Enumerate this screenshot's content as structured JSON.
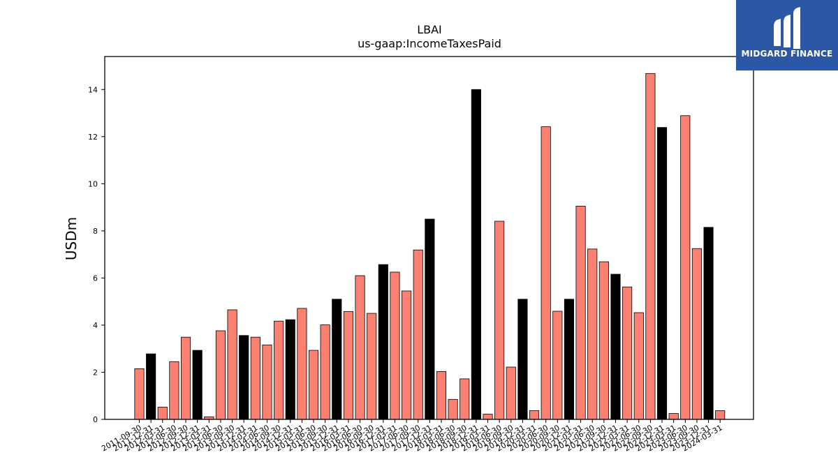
{
  "chart_data": {
    "type": "bar",
    "title": "LBAI",
    "subtitle": "us-gaap:IncomeTaxesPaid",
    "xlabel": "",
    "ylabel": "USDm",
    "ylim": [
      0,
      15.4
    ],
    "yticks": [
      0,
      2,
      4,
      6,
      8,
      10,
      12,
      14
    ],
    "grid": false,
    "categories": [
      "2011-09-30",
      "2011-12-31",
      "2012-03-31",
      "2012-06-30",
      "2012-09-30",
      "2012-12-31",
      "2013-03-31",
      "2013-06-30",
      "2013-09-30",
      "2013-12-31",
      "2014-03-31",
      "2014-06-30",
      "2014-09-30",
      "2014-12-31",
      "2015-03-31",
      "2015-06-30",
      "2015-09-30",
      "2015-12-31",
      "2016-03-31",
      "2016-06-30",
      "2016-09-30",
      "2016-12-31",
      "2017-03-31",
      "2017-06-30",
      "2017-09-30",
      "2017-12-31",
      "2018-03-31",
      "2018-06-30",
      "2018-09-30",
      "2018-12-31",
      "2019-03-31",
      "2019-06-30",
      "2019-09-30",
      "2019-12-31",
      "2020-03-31",
      "2020-06-30",
      "2020-09-30",
      "2020-12-31",
      "2021-03-31",
      "2021-06-30",
      "2021-09-30",
      "2021-12-31",
      "2022-03-31",
      "2022-06-30",
      "2022-09-30",
      "2022-12-31",
      "2023-03-31",
      "2023-06-30",
      "2023-09-30",
      "2023-12-31",
      "2024-03-31"
    ],
    "values": [
      2.15,
      2.78,
      0.52,
      2.45,
      3.49,
      2.93,
      0.11,
      3.76,
      4.65,
      3.56,
      3.49,
      3.16,
      4.17,
      4.23,
      4.71,
      2.93,
      4.01,
      5.1,
      4.58,
      6.1,
      4.5,
      6.57,
      6.25,
      5.45,
      7.19,
      8.5,
      2.03,
      0.85,
      1.72,
      14.0,
      0.22,
      8.41,
      2.22,
      5.1,
      0.37,
      12.42,
      4.59,
      5.1,
      9.05,
      7.23,
      6.69,
      6.16,
      5.62,
      4.53,
      14.68,
      12.39,
      0.25,
      12.89,
      7.25,
      8.15,
      0.37
    ],
    "highlight": [
      false,
      true,
      false,
      false,
      false,
      true,
      false,
      false,
      false,
      true,
      false,
      false,
      false,
      true,
      false,
      false,
      false,
      true,
      false,
      false,
      false,
      true,
      false,
      false,
      false,
      true,
      false,
      false,
      false,
      true,
      false,
      false,
      false,
      true,
      false,
      false,
      false,
      true,
      false,
      false,
      false,
      true,
      false,
      false,
      false,
      true,
      false,
      false,
      false,
      true,
      false
    ],
    "colors": {
      "bar": "#fa8072",
      "highlight": "#000000",
      "edge": "#000000"
    }
  },
  "logo": {
    "text": "MIDGARD FINANCE",
    "icon": "midgard-finance-logo-icon",
    "color": "#2b57a5"
  }
}
